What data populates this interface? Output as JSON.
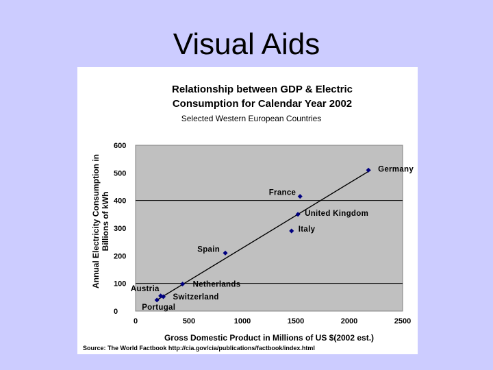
{
  "slide": {
    "title": "Visual Aids"
  },
  "chart_data": {
    "type": "scatter",
    "title_line1": "Relationship between GDP & Electric",
    "title_line2": "Consumption for Calendar Year 2002",
    "subtitle": "Selected Western European Countries",
    "xlabel": "Gross Domestic Product in Millions of US $(2002 est.)",
    "ylabel_line1": "Annual Electricity Consumption in",
    "ylabel_line2": "Billions of kWh",
    "xlim": [
      0,
      2500
    ],
    "ylim": [
      0,
      600
    ],
    "x_ticks": [
      "0",
      "500",
      "1000",
      "1500",
      "2000",
      "2500"
    ],
    "y_ticks": [
      "0",
      "100",
      "200",
      "300",
      "400",
      "500",
      "600"
    ],
    "x_tick_values": [
      0,
      500,
      1000,
      1500,
      2000,
      2500
    ],
    "y_tick_values": [
      0,
      100,
      200,
      300,
      400,
      500,
      600
    ],
    "gridlines_y": [
      100,
      400
    ],
    "points": [
      {
        "label": "Germany",
        "x": 2180,
        "y": 510
      },
      {
        "label": "France",
        "x": 1540,
        "y": 415
      },
      {
        "label": "United Kingdom",
        "x": 1520,
        "y": 350
      },
      {
        "label": "Italy",
        "x": 1460,
        "y": 290
      },
      {
        "label": "Spain",
        "x": 840,
        "y": 210
      },
      {
        "label": "Netherlands",
        "x": 440,
        "y": 98
      },
      {
        "label": "Austria",
        "x": 235,
        "y": 55
      },
      {
        "label": "Switzerland",
        "x": 260,
        "y": 52
      },
      {
        "label": "Portugal",
        "x": 200,
        "y": 40
      }
    ],
    "trendline": {
      "from": [
        200,
        40
      ],
      "to": [
        2200,
        510
      ]
    },
    "source": "Source:  The World Factbook  http://cia.gov/cia/publications/factbook/index.html",
    "colors": {
      "plot_area": "#c0c0c0",
      "point": "#000080",
      "background": "#ccccff"
    }
  }
}
